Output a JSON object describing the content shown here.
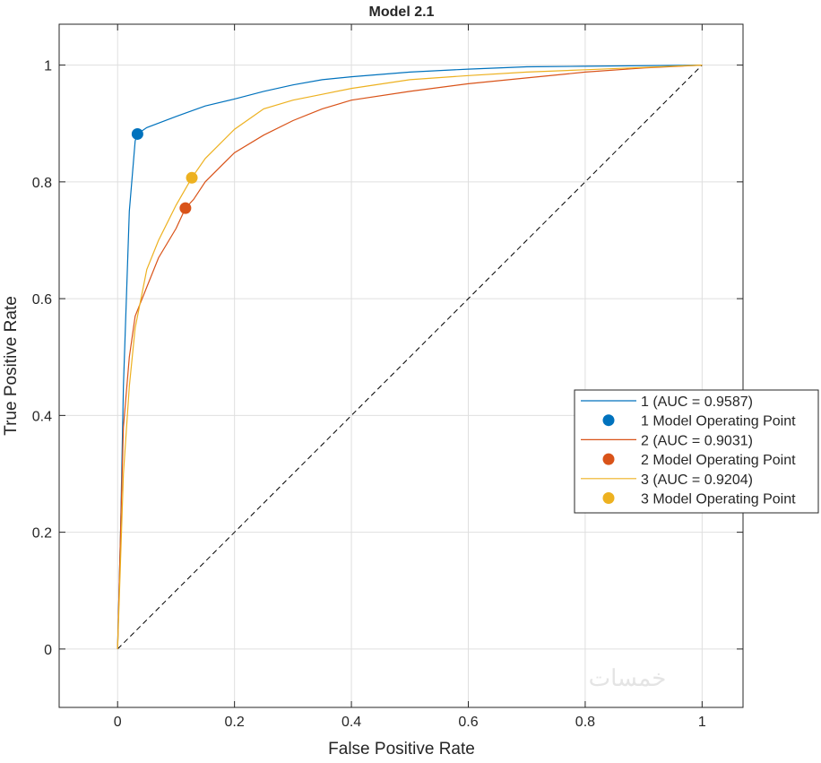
{
  "chart_data": {
    "type": "line",
    "title": "Model 2.1",
    "xlabel": "False Positive Rate",
    "ylabel": "True Positive Rate",
    "xlim": [
      -0.1,
      1.07
    ],
    "ylim": [
      -0.1,
      1.07
    ],
    "xticks": [
      0,
      0.2,
      0.4,
      0.6,
      0.8,
      1
    ],
    "xtick_labels": [
      "0",
      "0.2",
      "0.4",
      "0.6",
      "0.8",
      "1"
    ],
    "yticks": [
      0,
      0.2,
      0.4,
      0.6,
      0.8,
      1
    ],
    "ytick_labels": [
      "0",
      "0.2",
      "0.4",
      "0.6",
      "0.8",
      "1"
    ],
    "grid": true,
    "legend_position": "right-middle",
    "series": [
      {
        "name": "1 (AUC = 0.9587)",
        "color": "#0072BD",
        "x": [
          0,
          0.005,
          0.01,
          0.02,
          0.03,
          0.034,
          0.05,
          0.1,
          0.15,
          0.2,
          0.25,
          0.3,
          0.35,
          0.4,
          0.5,
          0.6,
          0.7,
          0.8,
          1
        ],
        "y": [
          0,
          0.2,
          0.45,
          0.75,
          0.87,
          0.882,
          0.893,
          0.912,
          0.93,
          0.942,
          0.955,
          0.966,
          0.975,
          0.98,
          0.988,
          0.993,
          0.997,
          0.998,
          1
        ],
        "operating_point": {
          "name": "1 Model Operating Point",
          "x": 0.034,
          "y": 0.882
        }
      },
      {
        "name": "2 (AUC = 0.9031)",
        "color": "#D95319",
        "x": [
          0,
          0.005,
          0.01,
          0.02,
          0.03,
          0.05,
          0.07,
          0.1,
          0.116,
          0.13,
          0.15,
          0.2,
          0.25,
          0.3,
          0.35,
          0.4,
          0.5,
          0.6,
          0.7,
          0.8,
          0.9,
          1
        ],
        "y": [
          0,
          0.2,
          0.38,
          0.5,
          0.57,
          0.62,
          0.67,
          0.72,
          0.755,
          0.77,
          0.8,
          0.85,
          0.88,
          0.905,
          0.925,
          0.94,
          0.955,
          0.968,
          0.978,
          0.988,
          0.995,
          1
        ],
        "operating_point": {
          "name": "2 Model Operating Point",
          "x": 0.116,
          "y": 0.755
        }
      },
      {
        "name": "3 (AUC = 0.9204)",
        "color": "#EDB120",
        "x": [
          0,
          0.01,
          0.02,
          0.03,
          0.05,
          0.07,
          0.1,
          0.127,
          0.15,
          0.2,
          0.25,
          0.3,
          0.35,
          0.4,
          0.5,
          0.6,
          0.7,
          0.8,
          0.9,
          1
        ],
        "y": [
          0,
          0.3,
          0.45,
          0.55,
          0.65,
          0.7,
          0.76,
          0.807,
          0.84,
          0.89,
          0.925,
          0.94,
          0.95,
          0.96,
          0.975,
          0.982,
          0.988,
          0.992,
          0.996,
          1
        ],
        "operating_point": {
          "name": "3 Model Operating Point",
          "x": 0.127,
          "y": 0.807
        }
      }
    ],
    "reference_line": {
      "x": [
        0,
        1
      ],
      "y": [
        0,
        1
      ],
      "style": "dashed",
      "color": "#000000"
    }
  },
  "watermark": "خمسات"
}
